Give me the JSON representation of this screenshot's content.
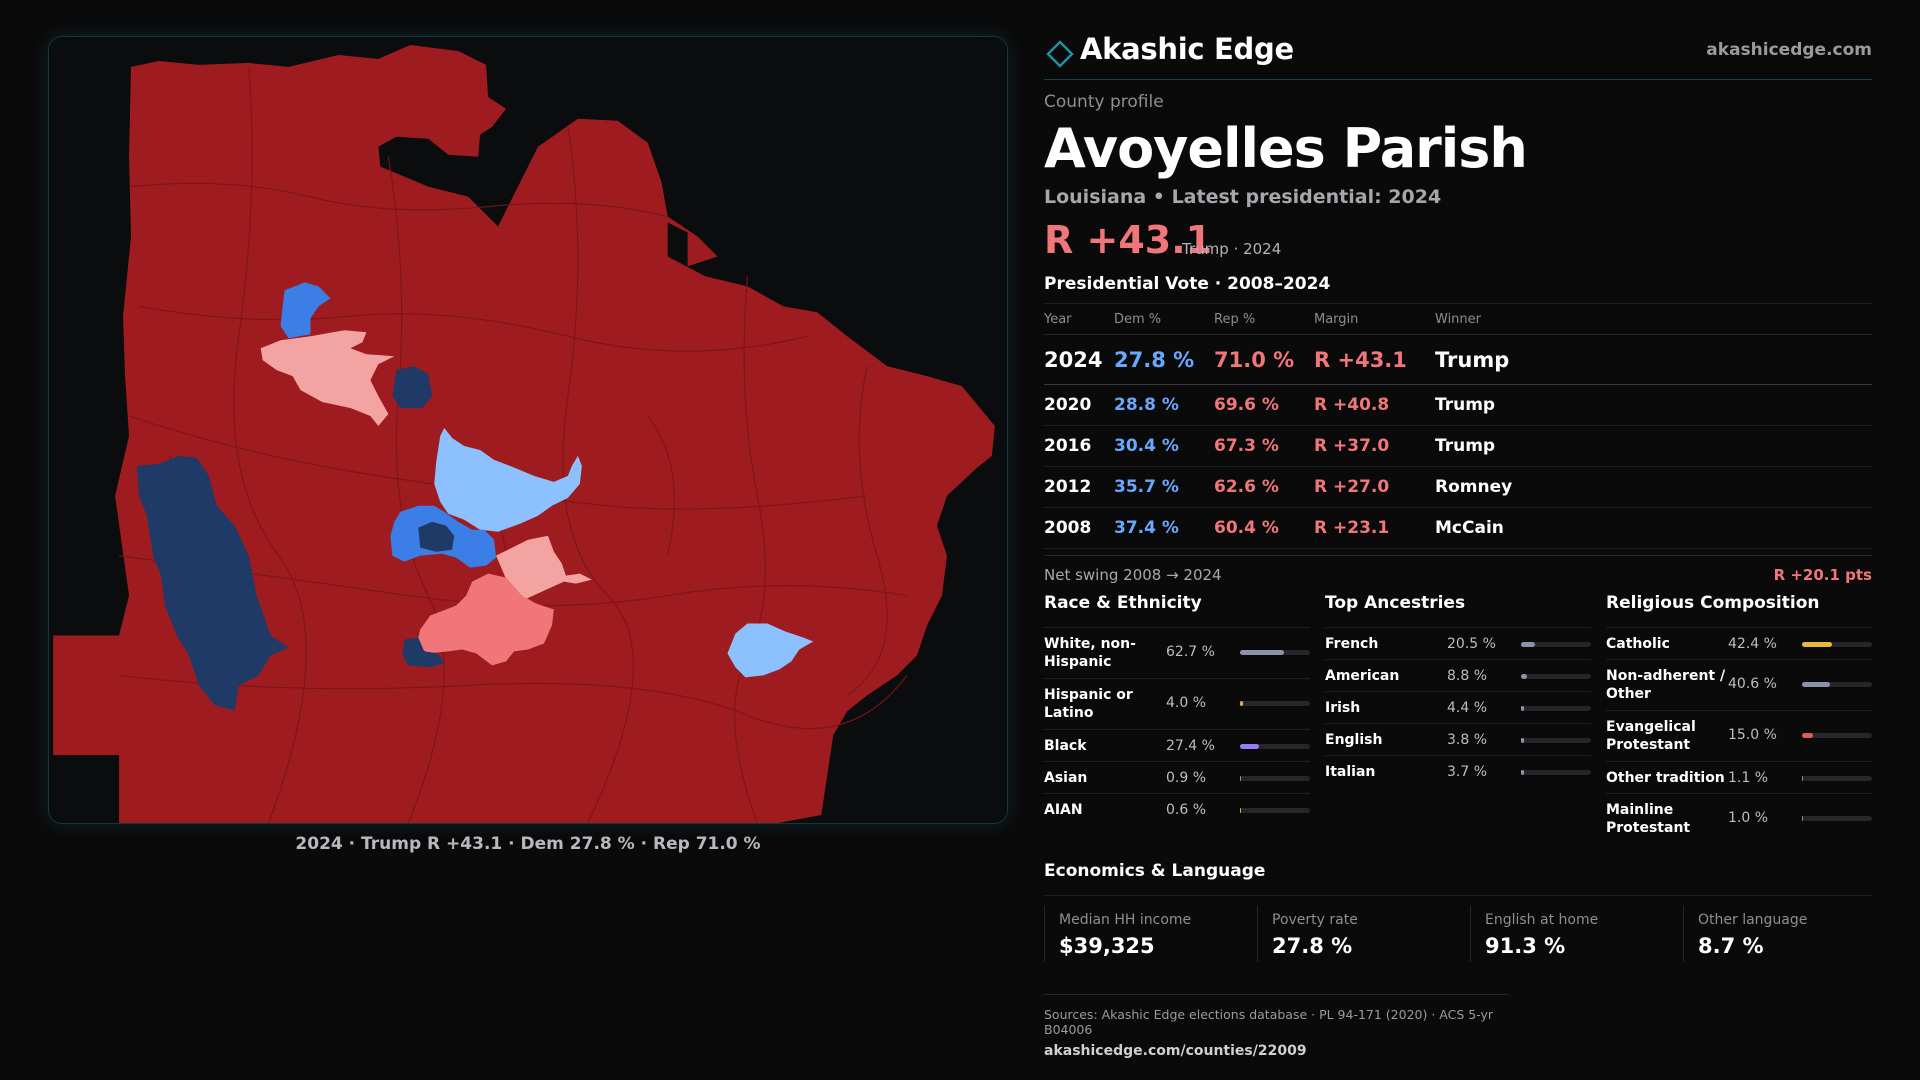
{
  "map": {
    "caption": "2024 · Trump R +43.1 · Dem 27.8 % · Rep 71.0 %",
    "colors": {
      "safe_r": "#9e1c20",
      "lean_r": "#f0767a",
      "tilt_r": "#f4a3a3",
      "tilt_d": "#8cc0ff",
      "lean_d": "#3a7ee6",
      "safe_d": "#1f3a66"
    }
  },
  "brand": {
    "name": "Akashic Edge",
    "url": "akashicedge.com",
    "logo_icon": "diamond-outline-icon",
    "accent": "#1f8fa3"
  },
  "profile": {
    "kicker": "County profile",
    "title": "Avoyelles Parish",
    "subtitle": "Louisiana • Latest presidential: 2024",
    "margin": "R +43.1",
    "margin_note": "Trump · 2024"
  },
  "vote": {
    "heading": "Presidential Vote · 2008–2024",
    "columns": [
      "Year",
      "Dem %",
      "Rep %",
      "Margin",
      "Winner"
    ],
    "rows": [
      {
        "year": "2024",
        "dem": "27.8 %",
        "rep": "71.0 %",
        "margin": "R +43.1",
        "winner": "Trump"
      },
      {
        "year": "2020",
        "dem": "28.8 %",
        "rep": "69.6 %",
        "margin": "R +40.8",
        "winner": "Trump"
      },
      {
        "year": "2016",
        "dem": "30.4 %",
        "rep": "67.3 %",
        "margin": "R +37.0",
        "winner": "Trump"
      },
      {
        "year": "2012",
        "dem": "35.7 %",
        "rep": "62.6 %",
        "margin": "R +27.0",
        "winner": "Romney"
      },
      {
        "year": "2008",
        "dem": "37.4 %",
        "rep": "60.4 %",
        "margin": "R +23.1",
        "winner": "McCain"
      }
    ],
    "swing_label": "Net swing 2008 → 2024",
    "swing_value": "R +20.1 pts"
  },
  "demographics": {
    "race": {
      "heading": "Race & Ethnicity",
      "rows": [
        {
          "label": "White, non-\nHispanic",
          "value": "62.7 %",
          "pct": 62.7,
          "color": "#8a93a8"
        },
        {
          "label": "Hispanic or\nLatino",
          "value": "4.0 %",
          "pct": 4.0,
          "color": "#e0a93a"
        },
        {
          "label": "Black",
          "value": "27.4 %",
          "pct": 27.4,
          "color": "#9b7cf0"
        },
        {
          "label": "Asian",
          "value": "0.9 %",
          "pct": 0.9,
          "color": "#8a93a8"
        },
        {
          "label": "AIAN",
          "value": "0.6 %",
          "pct": 0.6,
          "color": "#e0a93a"
        }
      ]
    },
    "ancestry": {
      "heading": "Top Ancestries",
      "rows": [
        {
          "label": "French",
          "value": "20.5 %",
          "pct": 20.5,
          "color": "#8a93a8"
        },
        {
          "label": "American",
          "value": "8.8 %",
          "pct": 8.8,
          "color": "#8a93a8"
        },
        {
          "label": "Irish",
          "value": "4.4 %",
          "pct": 4.4,
          "color": "#8a93a8"
        },
        {
          "label": "English",
          "value": "3.8 %",
          "pct": 3.8,
          "color": "#8a93a8"
        },
        {
          "label": "Italian",
          "value": "3.7 %",
          "pct": 3.7,
          "color": "#8a93a8"
        }
      ]
    },
    "religion": {
      "heading": "Religious Composition",
      "rows": [
        {
          "label": "Catholic",
          "value": "42.4 %",
          "pct": 42.4,
          "color": "#e6b93a"
        },
        {
          "label": "Non-adherent /\nOther",
          "value": "40.6 %",
          "pct": 40.6,
          "color": "#8a93a8"
        },
        {
          "label": "Evangelical\nProtestant",
          "value": "15.0 %",
          "pct": 15.0,
          "color": "#e05a5a"
        },
        {
          "label": "Other tradition",
          "value": "1.1 %",
          "pct": 1.1,
          "color": "#8a93a8"
        },
        {
          "label": "Mainline\nProtestant",
          "value": "1.0 %",
          "pct": 1.0,
          "color": "#8a93a8"
        }
      ]
    }
  },
  "economics": {
    "heading": "Economics & Language",
    "cells": [
      {
        "label": "Median HH income",
        "value": "$39,325"
      },
      {
        "label": "Poverty rate",
        "value": "27.8 %"
      },
      {
        "label": "English at home",
        "value": "91.3 %"
      },
      {
        "label": "Other language",
        "value": "8.7 %"
      }
    ]
  },
  "sources": {
    "line": "Sources: Akashic Edge elections database · PL 94-171 (2020) · ACS 5-yr B04006",
    "link": "akashicedge.com/counties/22009"
  }
}
